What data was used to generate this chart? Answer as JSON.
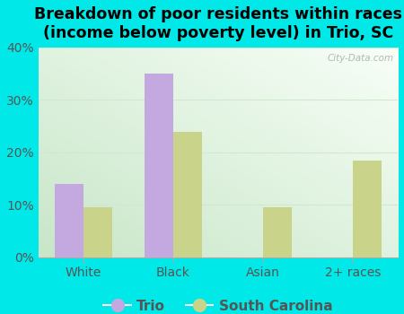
{
  "title": "Breakdown of poor residents within races\n(income below poverty level) in Trio, SC",
  "categories": [
    "White",
    "Black",
    "Asian",
    "2+ races"
  ],
  "trio_values": [
    14.0,
    35.0,
    0.0,
    0.0
  ],
  "sc_values": [
    9.5,
    24.0,
    9.5,
    18.5
  ],
  "trio_color": "#c4a8e0",
  "sc_color": "#c9d48a",
  "background_color": "#00e8e8",
  "ylim": [
    0,
    40
  ],
  "yticks": [
    0,
    10,
    20,
    30,
    40
  ],
  "yticklabels": [
    "0%",
    "10%",
    "20%",
    "30%",
    "40%"
  ],
  "bar_width": 0.32,
  "title_fontsize": 12.5,
  "tick_fontsize": 10,
  "legend_fontsize": 11,
  "watermark": "City-Data.com",
  "legend_trio": "Trio",
  "legend_sc": "South Carolina",
  "grid_color": "#d0e8d0",
  "tick_label_color": "#555555",
  "plot_left": "#e8f5e8",
  "plot_right": "#f8fef8"
}
